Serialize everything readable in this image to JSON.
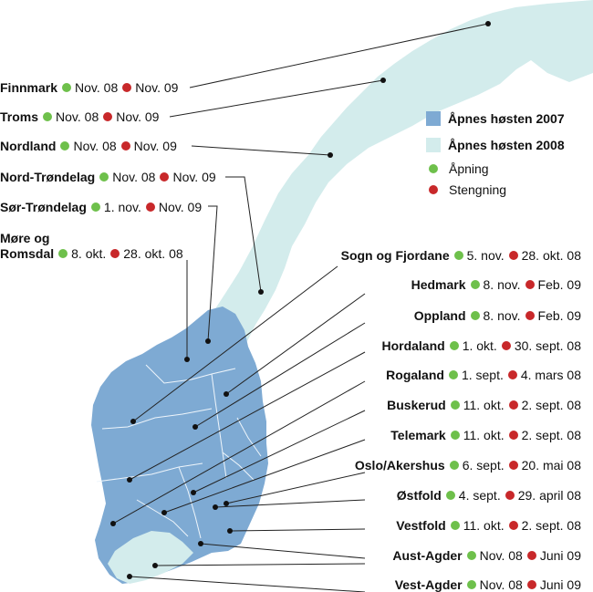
{
  "colors": {
    "opens_2007": "#7eaad3",
    "opens_2008": "#d3ecec",
    "opening_dot": "#6ec04b",
    "closing_dot": "#c8282a"
  },
  "legend": {
    "opens_2007": "Åpnes høsten 2007",
    "opens_2008": "Åpnes høsten 2008",
    "opening": "Åpning",
    "closing": "Stengning"
  },
  "regions_left": [
    {
      "name": "Finnmark",
      "open": "Nov. 08",
      "close": "Nov. 09"
    },
    {
      "name": "Troms",
      "open": "Nov. 08",
      "close": "Nov. 09"
    },
    {
      "name": "Nordland",
      "open": "Nov. 08",
      "close": "Nov. 09"
    },
    {
      "name": "Nord-Trøndelag",
      "open": "Nov. 08",
      "close": "Nov. 09"
    },
    {
      "name": "Sør-Trøndelag",
      "open": "1. nov.",
      "close": "Nov. 09"
    }
  ],
  "more_og_romsdal": {
    "name_line1": "Møre og",
    "name_line2": "Romsdal",
    "open": "8. okt.",
    "close": "28. okt. 08"
  },
  "regions_right": [
    {
      "name": "Sogn og Fjordane",
      "open": "5. nov.",
      "close": "28. okt. 08"
    },
    {
      "name": "Hedmark",
      "open": "8. nov.",
      "close": "Feb. 09"
    },
    {
      "name": "Oppland",
      "open": "8. nov.",
      "close": "Feb. 09"
    },
    {
      "name": "Hordaland",
      "open": "1. okt.",
      "close": "30. sept. 08"
    },
    {
      "name": "Rogaland",
      "open": "1. sept.",
      "close": "4. mars 08"
    },
    {
      "name": "Buskerud",
      "open": "11. okt.",
      "close": "2. sept. 08"
    },
    {
      "name": "Telemark",
      "open": "11. okt.",
      "close": "2. sept. 08"
    },
    {
      "name": "Oslo/Akershus",
      "open": "6. sept.",
      "close": "20. mai 08"
    },
    {
      "name": "Østfold",
      "open": "4. sept.",
      "close": "29. april 08"
    },
    {
      "name": "Vestfold",
      "open": "11. okt.",
      "close": "2. sept. 08"
    },
    {
      "name": "Aust-Agder",
      "open": "Nov. 08",
      "close": "Juni 09"
    },
    {
      "name": "Vest-Agder",
      "open": "Nov. 08",
      "close": "Juni 09"
    }
  ]
}
